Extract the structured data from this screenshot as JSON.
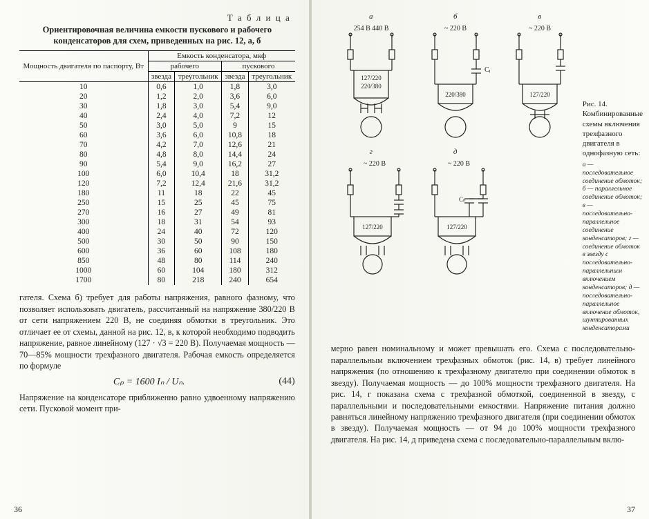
{
  "table": {
    "label": "Т а б л и ц а",
    "caption": "Ориентировочная величина емкости пускового и рабочего конденсаторов для схем, приведенных на рис. 12, а, б",
    "group_header": "Емкость конденсатора, мкф",
    "col_power": "Мощность двигателя по паспорту, Вт",
    "col_working": "рабочего",
    "col_starting": "пускового",
    "col_star": "звезда",
    "col_delta": "треугольник",
    "rows": [
      [
        "10",
        "0,6",
        "1,0",
        "1,8",
        "3,0"
      ],
      [
        "20",
        "1,2",
        "2,0",
        "3,6",
        "6,0"
      ],
      [
        "30",
        "1,8",
        "3,0",
        "5,4",
        "9,0"
      ],
      [
        "40",
        "2,4",
        "4,0",
        "7,2",
        "12"
      ],
      [
        "50",
        "3,0",
        "5,0",
        "9",
        "15"
      ],
      [
        "60",
        "3,6",
        "6,0",
        "10,8",
        "18"
      ],
      [
        "70",
        "4,2",
        "7,0",
        "12,6",
        "21"
      ],
      [
        "80",
        "4,8",
        "8,0",
        "14,4",
        "24"
      ],
      [
        "90",
        "5,4",
        "9,0",
        "16,2",
        "27"
      ],
      [
        "100",
        "6,0",
        "10,4",
        "18",
        "31,2"
      ],
      [
        "120",
        "7,2",
        "12,4",
        "21,6",
        "31,2"
      ],
      [
        "180",
        "11",
        "18",
        "22",
        "45"
      ],
      [
        "250",
        "15",
        "25",
        "45",
        "75"
      ],
      [
        "270",
        "16",
        "27",
        "49",
        "81"
      ],
      [
        "300",
        "18",
        "31",
        "54",
        "93"
      ],
      [
        "400",
        "24",
        "40",
        "72",
        "120"
      ],
      [
        "500",
        "30",
        "50",
        "90",
        "150"
      ],
      [
        "600",
        "36",
        "60",
        "108",
        "180"
      ],
      [
        "850",
        "48",
        "80",
        "114",
        "240"
      ],
      [
        "1000",
        "60",
        "104",
        "180",
        "312"
      ],
      [
        "1700",
        "80",
        "218",
        "240",
        "654"
      ]
    ]
  },
  "left_text": {
    "p1": "гателя. Схема б) требует для работы напряжения, равного фазному, что позволяет использовать двигатель, рассчитанный на напряжение 380/220 В от сети напряжением 220 В, не соединяя обмотки в треугольник. Это отличает ее от схемы, данной на рис. 12, в, к которой необходимо подводить напряжение, равное линейному (127 · √3 = 220 В). Получаемая мощность — 70—85% мощности трехфазного двигателя. Рабочая емкость определяется по формуле",
    "formula": "Cₚ = 1600 Iₙ / Uₙ.",
    "formula_num": "(44)",
    "p2": "Напряжение на конденсаторе приближенно равно удвоенному напряжению сети. Пусковой момент при-"
  },
  "left_page_num": "36",
  "right_page_num": "37",
  "diagrams": {
    "a": {
      "letter": "а",
      "volt": "254 В\n440 В",
      "wind": "127/220\n220/380"
    },
    "b": {
      "letter": "б",
      "volt": "~ 220 В",
      "cap": "Cₚ",
      "wind": "220/380"
    },
    "c": {
      "letter": "в",
      "volt": "~ 220 В",
      "wind": "127/220"
    },
    "d": {
      "letter": "г",
      "volt": "~ 220 В",
      "wind": "127/220"
    },
    "e": {
      "letter": "д",
      "volt": "~ 220 В",
      "cap": "Cₙ",
      "wind": "127/220"
    }
  },
  "fig14": {
    "title": "Рис. 14. Комбинированные схемы включения трехфазного двигателя в однофазную сеть:",
    "legend": "а — последовательное соединение обмоток; б — параллельное соединение обмоток; в — последовательно-параллельное соединение конденсаторов; г — соединение обмоток в звезду с последовательно-параллельным включением конденсаторов; д — последовательно-параллельное включение обмоток, шунтированных конденсаторами"
  },
  "right_text": {
    "p1": "мерно равен номинальному и может превышать его. Схема с последовательно-параллельным включением трехфазных обмоток (рис. 14, в) требует линейного напряжения (по отношению к трехфазному двигателю при соединении обмоток в звезду). Получаемая мощность — до 100% мощности трехфазного двигателя. На рис. 14, г показана схема с трехфазной обмоткой, соединенной в звезду, с параллельными и последовательными емкостями. Напряжение питания должно равняться линейному напряжению трехфазного двигателя (при соединении обмоток в звезду). Получаемая мощность — от 94 до 100% мощности трехфазного двигателя. На рис. 14, д приведена схема с последовательно-параллельным вклю-"
  },
  "style": {
    "stroke": "#222222",
    "paper": "#fbfbf8"
  }
}
